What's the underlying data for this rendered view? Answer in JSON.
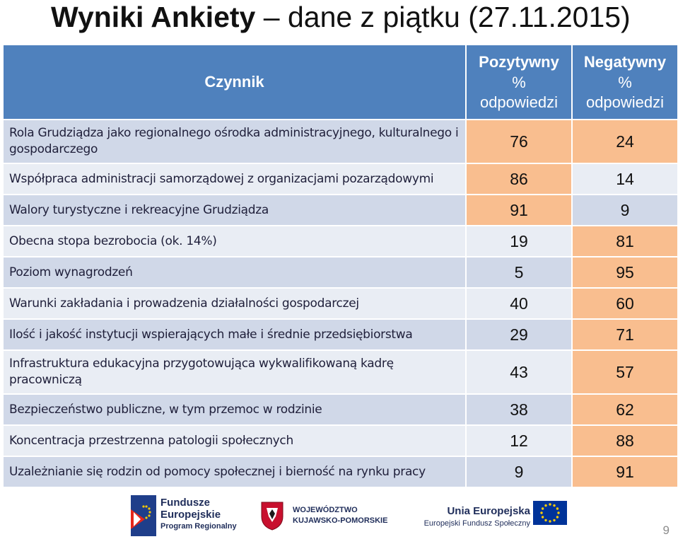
{
  "title": {
    "bold": "Wyniki Ankiety",
    "rest": " – dane z piątku (27.11.2015)"
  },
  "table": {
    "header": {
      "factor": "Czynnik",
      "positive_title": "Pozytywny",
      "positive_sub1": "%",
      "positive_sub2": "odpowiedzi",
      "negative_title": "Negatywny",
      "negative_sub1": "%",
      "negative_sub2": "odpowiedzi"
    },
    "rows": [
      {
        "factor": "Rola Grudziądza jako regionalnego ośrodka administracyjnego, kulturalnego i gospodarczego",
        "positive": "76",
        "negative": "24"
      },
      {
        "factor": "Współpraca administracji samorządowej z organizacjami pozarządowymi",
        "positive": "86",
        "negative": "14"
      },
      {
        "factor": "Walory turystyczne i rekreacyjne Grudziądza",
        "positive": "91",
        "negative": "9"
      },
      {
        "factor": "Obecna stopa bezrobocia (ok. 14%)",
        "positive": "19",
        "negative": "81"
      },
      {
        "factor": "Poziom wynagrodzeń",
        "positive": "5",
        "negative": "95"
      },
      {
        "factor": "Warunki zakładania i prowadzenia działalności gospodarczej",
        "positive": "40",
        "negative": "60"
      },
      {
        "factor": "Ilość i jakość instytucji wspierających małe i średnie przedsiębiorstwa",
        "positive": "29",
        "negative": "71"
      },
      {
        "factor": "Infrastruktura edukacyjna przygotowująca wykwalifikowaną kadrę pracowniczą",
        "positive": "43",
        "negative": "57"
      },
      {
        "factor": "Bezpieczeństwo publiczne, w tym przemoc w rodzinie",
        "positive": "38",
        "negative": "62"
      },
      {
        "factor": "Koncentracja przestrzenna patologii społecznych",
        "positive": "12",
        "negative": "88"
      },
      {
        "factor": "Uzależnianie się rodzin od pomocy społecznej i bierność na rynku pracy",
        "positive": "9",
        "negative": "91"
      }
    ]
  },
  "footer": {
    "fe_line1": "Fundusze",
    "fe_line2": "Europejskie",
    "fe_line3": "Program Regionalny",
    "woj_line1": "WOJEWÓDZTWO",
    "woj_line2": "KUJAWSKO-POMORSKIE",
    "ue_line1": "Unia Europejska",
    "ue_line2": "Europejski Fundusz Społeczny"
  },
  "page_number": "9",
  "colors": {
    "header_blue": "#4f81bd",
    "row_dark": "#d0d8e8",
    "row_light": "#e9edf4",
    "highlight_orange": "#f9be8f"
  }
}
